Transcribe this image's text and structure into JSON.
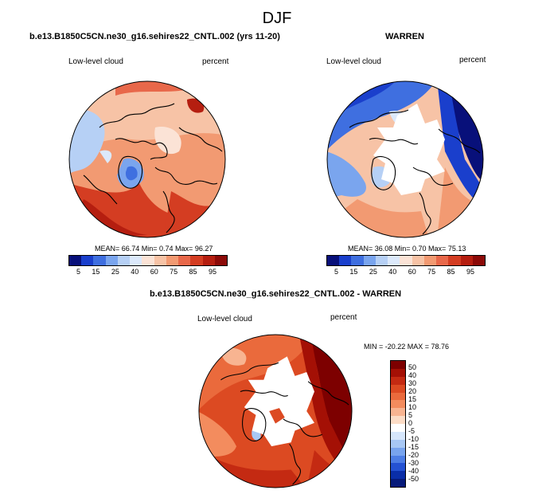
{
  "title": "DJF",
  "panels": {
    "model": {
      "title": "b.e13.B1850C5CN.ne30_g16.sehires22_CNTL.002 (yrs 11-20)",
      "variable": "Low-level cloud",
      "units": "percent",
      "stats": "MEAN= 66.74  Min=  0.74  Max=  96.27"
    },
    "obs": {
      "title": "WARREN",
      "variable": "Low-level cloud",
      "units": "percent",
      "stats": "MEAN=  36.08  Min=   0.70  Max=  75.13"
    },
    "diff": {
      "title": "b.e13.B1850C5CN.ne30_g16.sehires22_CNTL.002 - WARREN",
      "variable": "Low-level cloud",
      "units": "percent",
      "stats": "MIN = -20.22  MAX =  78.76"
    }
  },
  "colorbar_abs": {
    "labels": [
      "5",
      "15",
      "25",
      "40",
      "60",
      "75",
      "85",
      "95"
    ],
    "colors": [
      "#08107a",
      "#1a3fcc",
      "#3f6fe0",
      "#7aa5ee",
      "#b6d0f5",
      "#dce9fb",
      "#fbe3d6",
      "#f7c3a6",
      "#f29a72",
      "#e8684a",
      "#d43d22",
      "#b51e10",
      "#8c0a08"
    ]
  },
  "colorbar_diff": {
    "labels": [
      "50",
      "40",
      "30",
      "20",
      "15",
      "10",
      "5",
      "0",
      "-5",
      "-10",
      "-15",
      "-20",
      "-30",
      "-40",
      "-50"
    ],
    "colors": [
      "#7d0000",
      "#a41005",
      "#c42a12",
      "#dc4a22",
      "#ea6a3c",
      "#f38c5e",
      "#f8b491",
      "#fcdcc6",
      "#ffffff",
      "#d6e6fb",
      "#a8c8f5",
      "#78a4ee",
      "#4d7ee5",
      "#2452d3",
      "#0a2ea8",
      "#061a7a"
    ]
  }
}
